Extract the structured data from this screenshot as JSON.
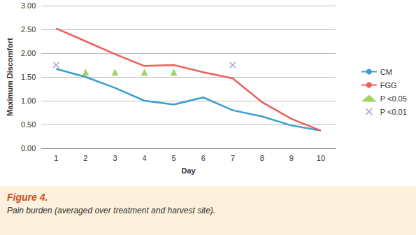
{
  "chart_data": {
    "type": "line",
    "title": "Figure 4.",
    "subtitle": "Pain burden (averaged over treatment and harvest site).",
    "x_label": "Day",
    "y_label": "Maximum Discomfort",
    "categories": [
      "1",
      "2",
      "3",
      "4",
      "5",
      "6",
      "7",
      "8",
      "9",
      "10"
    ],
    "series": [
      {
        "name": "CM",
        "type": "line",
        "color": "#3a9fcf",
        "values": [
          1.67,
          1.5,
          1.27,
          1.0,
          0.92,
          1.07,
          0.8,
          0.67,
          0.48,
          0.37
        ]
      },
      {
        "name": "FGG",
        "type": "line",
        "color": "#ec5f58",
        "values": [
          2.52,
          2.25,
          1.98,
          1.73,
          1.75,
          1.6,
          1.47,
          0.97,
          0.62,
          0.37
        ]
      },
      {
        "name": "P <0.05",
        "type": "scatter",
        "marker": "triangle",
        "color": "#8cc63f",
        "values": [
          null,
          1.6,
          1.6,
          1.6,
          1.6,
          null,
          null,
          null,
          null,
          null
        ]
      },
      {
        "name": "P <0.01",
        "type": "scatter",
        "marker": "cross",
        "color": "#8a7dc4",
        "values": [
          1.75,
          null,
          null,
          null,
          null,
          null,
          1.75,
          null,
          null,
          null
        ]
      }
    ],
    "ylim": [
      0,
      3
    ],
    "yticks": [
      {
        "value": 0,
        "label": "0.00"
      },
      {
        "value": 0.5,
        "label": "0.50"
      },
      {
        "value": 1,
        "label": "1.00"
      },
      {
        "value": 1.5,
        "label": "1.50"
      },
      {
        "value": 2,
        "label": "2.00"
      },
      {
        "value": 2.5,
        "label": "2.50"
      },
      {
        "value": 3,
        "label": "3.00"
      }
    ],
    "grid": true,
    "legend": "right"
  }
}
